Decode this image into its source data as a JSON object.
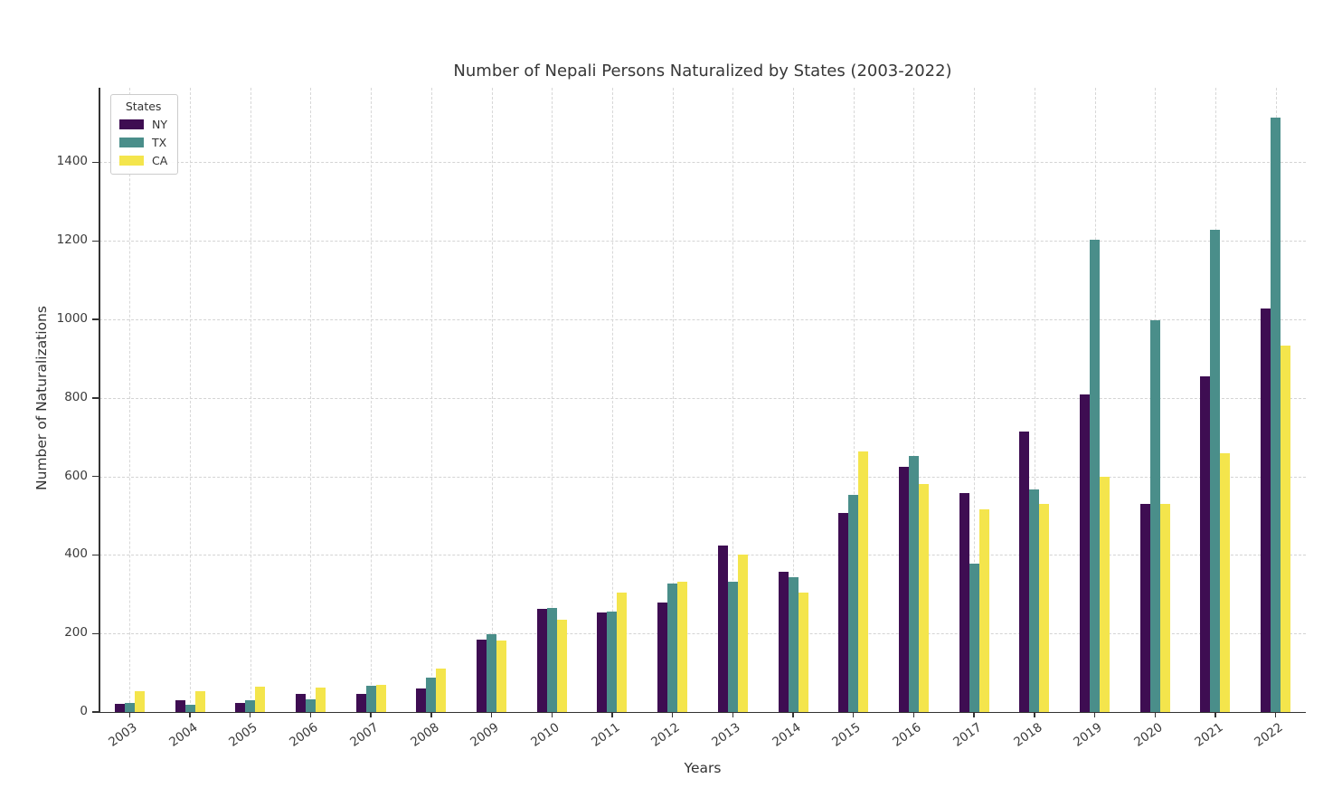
{
  "chart_data": {
    "type": "bar",
    "title": "Number of Nepali Persons Naturalized by States (2003-2022)",
    "xlabel": "Years",
    "ylabel": "Number of Naturalizations",
    "categories": [
      "2003",
      "2004",
      "2005",
      "2006",
      "2007",
      "2008",
      "2009",
      "2010",
      "2011",
      "2012",
      "2013",
      "2014",
      "2015",
      "2016",
      "2017",
      "2018",
      "2019",
      "2020",
      "2021",
      "2022"
    ],
    "series": [
      {
        "name": "NY",
        "color": "#3e0d52",
        "values": [
          20,
          29,
          22,
          45,
          45,
          59,
          185,
          262,
          254,
          278,
          423,
          358,
          508,
          625,
          557,
          715,
          808,
          529,
          854,
          1028
        ]
      },
      {
        "name": "TX",
        "color": "#4a8e8a",
        "values": [
          22,
          18,
          30,
          33,
          68,
          88,
          198,
          266,
          255,
          328,
          331,
          343,
          552,
          652,
          377,
          567,
          1203,
          998,
          1229,
          1513
        ]
      },
      {
        "name": "CA",
        "color": "#f4e54c",
        "values": [
          53,
          54,
          65,
          62,
          69,
          110,
          182,
          234,
          305,
          332,
          402,
          305,
          664,
          581,
          517,
          531,
          599,
          531,
          660,
          933
        ]
      }
    ],
    "ylim": [
      0,
      1590
    ],
    "yticks": [
      0,
      200,
      400,
      600,
      800,
      1000,
      1200,
      1400
    ],
    "legend": {
      "title": "States",
      "position": "upper left"
    },
    "grid": true
  },
  "colors": {
    "grid": "#d4d4d4",
    "spine": "#333333",
    "text": "#333333",
    "background": "#ffffff"
  }
}
